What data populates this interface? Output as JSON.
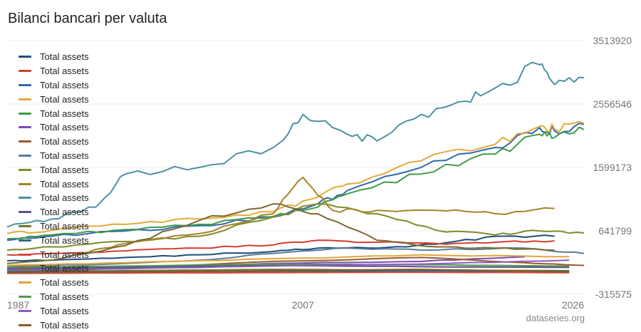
{
  "chart_data": {
    "type": "line",
    "title": "Bilanci bancari per valuta",
    "xlabel": "",
    "ylabel": "",
    "xlim": [
      1987,
      2026
    ],
    "ylim": [
      -315575,
      3513920
    ],
    "x_ticks": [
      "1987",
      "2007",
      "2026"
    ],
    "y_ticks": [
      "3513920",
      "2556546",
      "1599173",
      "641799",
      "-315575"
    ],
    "grid": true,
    "legend_position": "left",
    "source": "dataseries.org",
    "series": [
      {
        "name": "Total assets",
        "color": "#1f4e79",
        "x": [
          1987,
          1990,
          1995,
          2000,
          2005,
          2008,
          2012,
          2016,
          2020,
          2024
        ],
        "values": [
          190000,
          200000,
          240000,
          280000,
          330000,
          380000,
          380000,
          440000,
          560000,
          560000
        ]
      },
      {
        "name": "Total assets",
        "color": "#d63c2f",
        "x": [
          1987,
          1990,
          1995,
          2000,
          2005,
          2008,
          2012,
          2016,
          2020,
          2024
        ],
        "values": [
          280000,
          300000,
          340000,
          380000,
          430000,
          500000,
          470000,
          450000,
          470000,
          490000
        ]
      },
      {
        "name": "Total assets",
        "color": "#3366b2",
        "x": [
          1987,
          1990,
          1995,
          2000,
          2005,
          2008,
          2010,
          2015,
          2020,
          2023,
          2024,
          2026
        ],
        "values": [
          500000,
          560000,
          640000,
          720000,
          850000,
          1050000,
          1250000,
          1600000,
          1900000,
          2200000,
          2150000,
          2250000
        ]
      },
      {
        "name": "Total assets",
        "color": "#e3a93a",
        "x": [
          1987,
          1990,
          1995,
          2000,
          2005,
          2008,
          2010,
          2015,
          2020,
          2023,
          2024,
          2026
        ],
        "values": [
          600000,
          650000,
          740000,
          820000,
          930000,
          1150000,
          1350000,
          1700000,
          1950000,
          2220000,
          2180000,
          2260000
        ]
      },
      {
        "name": "Total assets",
        "color": "#3f9a47",
        "x": [
          1987,
          1990,
          1995,
          2000,
          2005,
          2008,
          2010,
          2015,
          2020,
          2023,
          2024,
          2026
        ],
        "values": [
          520000,
          580000,
          660000,
          740000,
          860000,
          1000000,
          1200000,
          1500000,
          1800000,
          2100000,
          2050000,
          2170000
        ]
      },
      {
        "name": "Total assets",
        "color": "#7b4bb0",
        "x": [
          1987,
          1995,
          2005,
          2015,
          2022
        ],
        "values": [
          60000,
          80000,
          150000,
          180000,
          250000
        ]
      },
      {
        "name": "Total assets",
        "color": "#9a5a2c",
        "x": [
          1987,
          1995,
          2005,
          2015,
          2022,
          2026
        ],
        "values": [
          40000,
          70000,
          180000,
          240000,
          160000,
          120000
        ]
      },
      {
        "name": "Total assets",
        "color": "#5a7d9a",
        "x": [
          1987,
          1995,
          2000,
          2005,
          2010,
          2015,
          2022,
          2026
        ],
        "values": [
          100000,
          150000,
          200000,
          300000,
          380000,
          350000,
          380000,
          300000
        ]
      },
      {
        "name": "Total assets",
        "color": "#808a28",
        "x": [
          1987,
          1990,
          1995,
          2000,
          2005,
          2008,
          2012,
          2016,
          2020,
          2023,
          2026
        ],
        "values": [
          350000,
          400000,
          480000,
          560000,
          850000,
          1050000,
          900000,
          650000,
          580000,
          640000,
          610000
        ]
      },
      {
        "name": "Total assets",
        "color": "#a88428",
        "x": [
          1992,
          1995,
          2000,
          2005,
          2007,
          2009,
          2012,
          2016,
          2020,
          2024
        ],
        "values": [
          300000,
          450000,
          600000,
          900000,
          1450000,
          950000,
          950000,
          950000,
          900000,
          980000
        ]
      },
      {
        "name": "Total assets",
        "color": "#4a93a0",
        "x": [
          1987,
          1990,
          1993,
          1995,
          2000,
          2005,
          2007,
          2010,
          2012,
          2015,
          2018,
          2020,
          2023,
          2024,
          2026
        ],
        "values": [
          700000,
          820000,
          1000000,
          1500000,
          1600000,
          1900000,
          2400000,
          2100000,
          2000000,
          2400000,
          2600000,
          2800000,
          3150000,
          2850000,
          2950000
        ]
      },
      {
        "name": "Total assets",
        "color": "#5b4f8a",
        "x": [
          1987,
          1995,
          2005,
          2015,
          2025
        ],
        "values": [
          80000,
          90000,
          120000,
          100000,
          90000
        ]
      },
      {
        "name": "Total assets",
        "color": "#6f7a2a",
        "x": [
          1987,
          1995,
          2005,
          2015,
          2025
        ],
        "values": [
          30000,
          40000,
          60000,
          50000,
          40000
        ]
      },
      {
        "name": "Total assets",
        "color": "#2a6a86",
        "x": [
          1987,
          1995,
          2005,
          2015,
          2025
        ],
        "values": [
          20000,
          25000,
          30000,
          35000,
          30000
        ]
      },
      {
        "name": "Total assets",
        "color": "#d8453a",
        "x": [
          1987,
          1995,
          2005,
          2015,
          2025
        ],
        "values": [
          0,
          5000,
          10000,
          15000,
          10000
        ]
      },
      {
        "name": "Total assets",
        "color": "#7c6a30",
        "x": [
          1987,
          1990,
          1995,
          2000,
          2005,
          2008,
          2012,
          2016,
          2020,
          2024
        ],
        "values": [
          150000,
          200000,
          420000,
          800000,
          1050000,
          900000,
          500000,
          400000,
          380000,
          350000
        ]
      },
      {
        "name": "Total assets",
        "color": "#e0a53c",
        "x": [
          1987,
          1995,
          2005,
          2015,
          2025
        ],
        "values": [
          120000,
          160000,
          220000,
          280000,
          250000
        ]
      },
      {
        "name": "Total assets",
        "color": "#4f9a4a",
        "x": [
          1987,
          1995,
          2005,
          2015,
          2025
        ],
        "values": [
          90000,
          110000,
          140000,
          130000,
          110000
        ]
      },
      {
        "name": "Total assets",
        "color": "#8e5bc0",
        "x": [
          1987,
          1995,
          2005,
          2015,
          2025
        ],
        "values": [
          50000,
          70000,
          110000,
          140000,
          200000
        ]
      },
      {
        "name": "Total assets",
        "color": "#8a5a2a",
        "x": [
          1987,
          1995,
          2005,
          2015,
          2025
        ],
        "values": [
          10000,
          20000,
          40000,
          60000,
          20000
        ]
      }
    ]
  }
}
